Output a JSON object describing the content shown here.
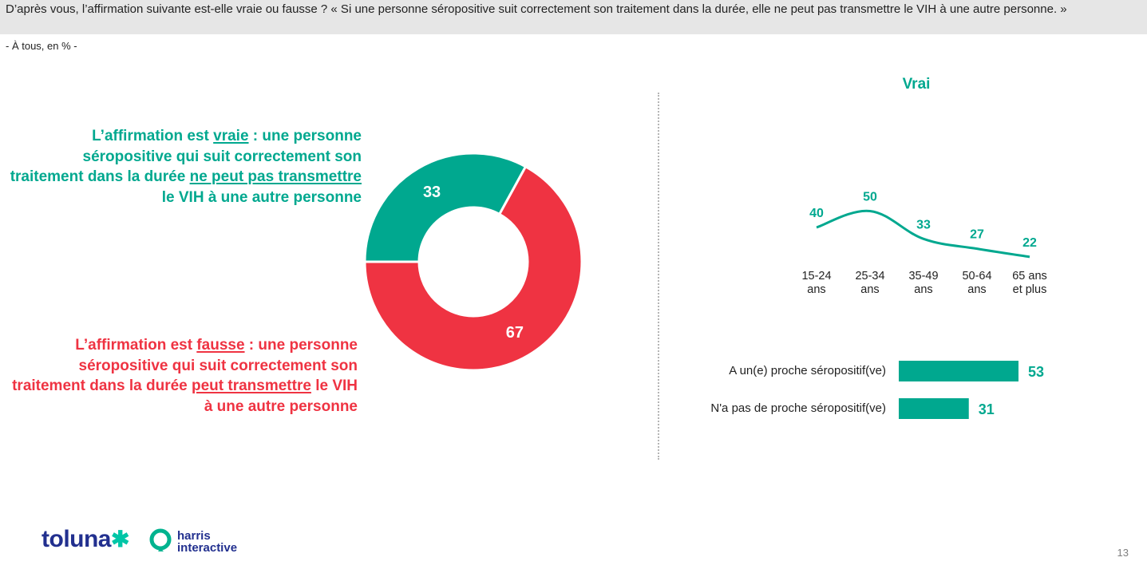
{
  "header": {
    "question": "D’après vous, l’affirmation suivante est-elle vraie ou fausse ? « Si une personne séropositive suit correctement son traitement dans la durée, elle ne peut pas transmettre le VIH à une autre personne. »",
    "scope": "- À tous, en % -"
  },
  "labels": {
    "vraie": {
      "p1": "L’affirmation est ",
      "u1": "vraie",
      "p2": " : une personne séropositive qui suit correctement son traitement dans la durée ",
      "u2": "ne peut pas transmettre",
      "p3": " le VIH à une autre personne"
    },
    "fausse": {
      "p1": "L’affirmation est ",
      "u1": "fausse",
      "p2": " : une personne séropositive qui suit correctement son traitement dans la durée ",
      "u2": "peut transmettre",
      "p3": " le VIH à une autre personne"
    }
  },
  "colors": {
    "green": "#00a88f",
    "red": "#ef3342",
    "navy": "#22308f"
  },
  "chart_data": [
    {
      "type": "pie",
      "variant": "donut",
      "categories": [
        "Vraie",
        "Fausse"
      ],
      "values": [
        33,
        67
      ],
      "value_labels": [
        "33",
        "67"
      ]
    },
    {
      "type": "line",
      "title": "Vrai",
      "categories": [
        "15-24 ans",
        "25-34 ans",
        "35-49 ans",
        "50-64 ans",
        "65 ans et plus"
      ],
      "category_lines": [
        [
          "15-24",
          "ans"
        ],
        [
          "25-34",
          "ans"
        ],
        [
          "35-49",
          "ans"
        ],
        [
          "50-64",
          "ans"
        ],
        [
          "65 ans",
          "et plus"
        ]
      ],
      "values": [
        40,
        50,
        33,
        27,
        22
      ],
      "value_labels": [
        "40",
        "50",
        "33",
        "27",
        "22"
      ],
      "ylim": [
        0,
        60
      ]
    },
    {
      "type": "bar",
      "orientation": "horizontal",
      "categories": [
        "A un(e) proche séropositif(ve)",
        "N'a pas de proche séropositif(ve)"
      ],
      "values": [
        53,
        31
      ],
      "value_labels": [
        "53",
        "31"
      ]
    }
  ],
  "footer": {
    "logo_toluna": "toluna",
    "logo_harris_line1": "harris",
    "logo_harris_line2": "interactive",
    "page_number": "13"
  }
}
